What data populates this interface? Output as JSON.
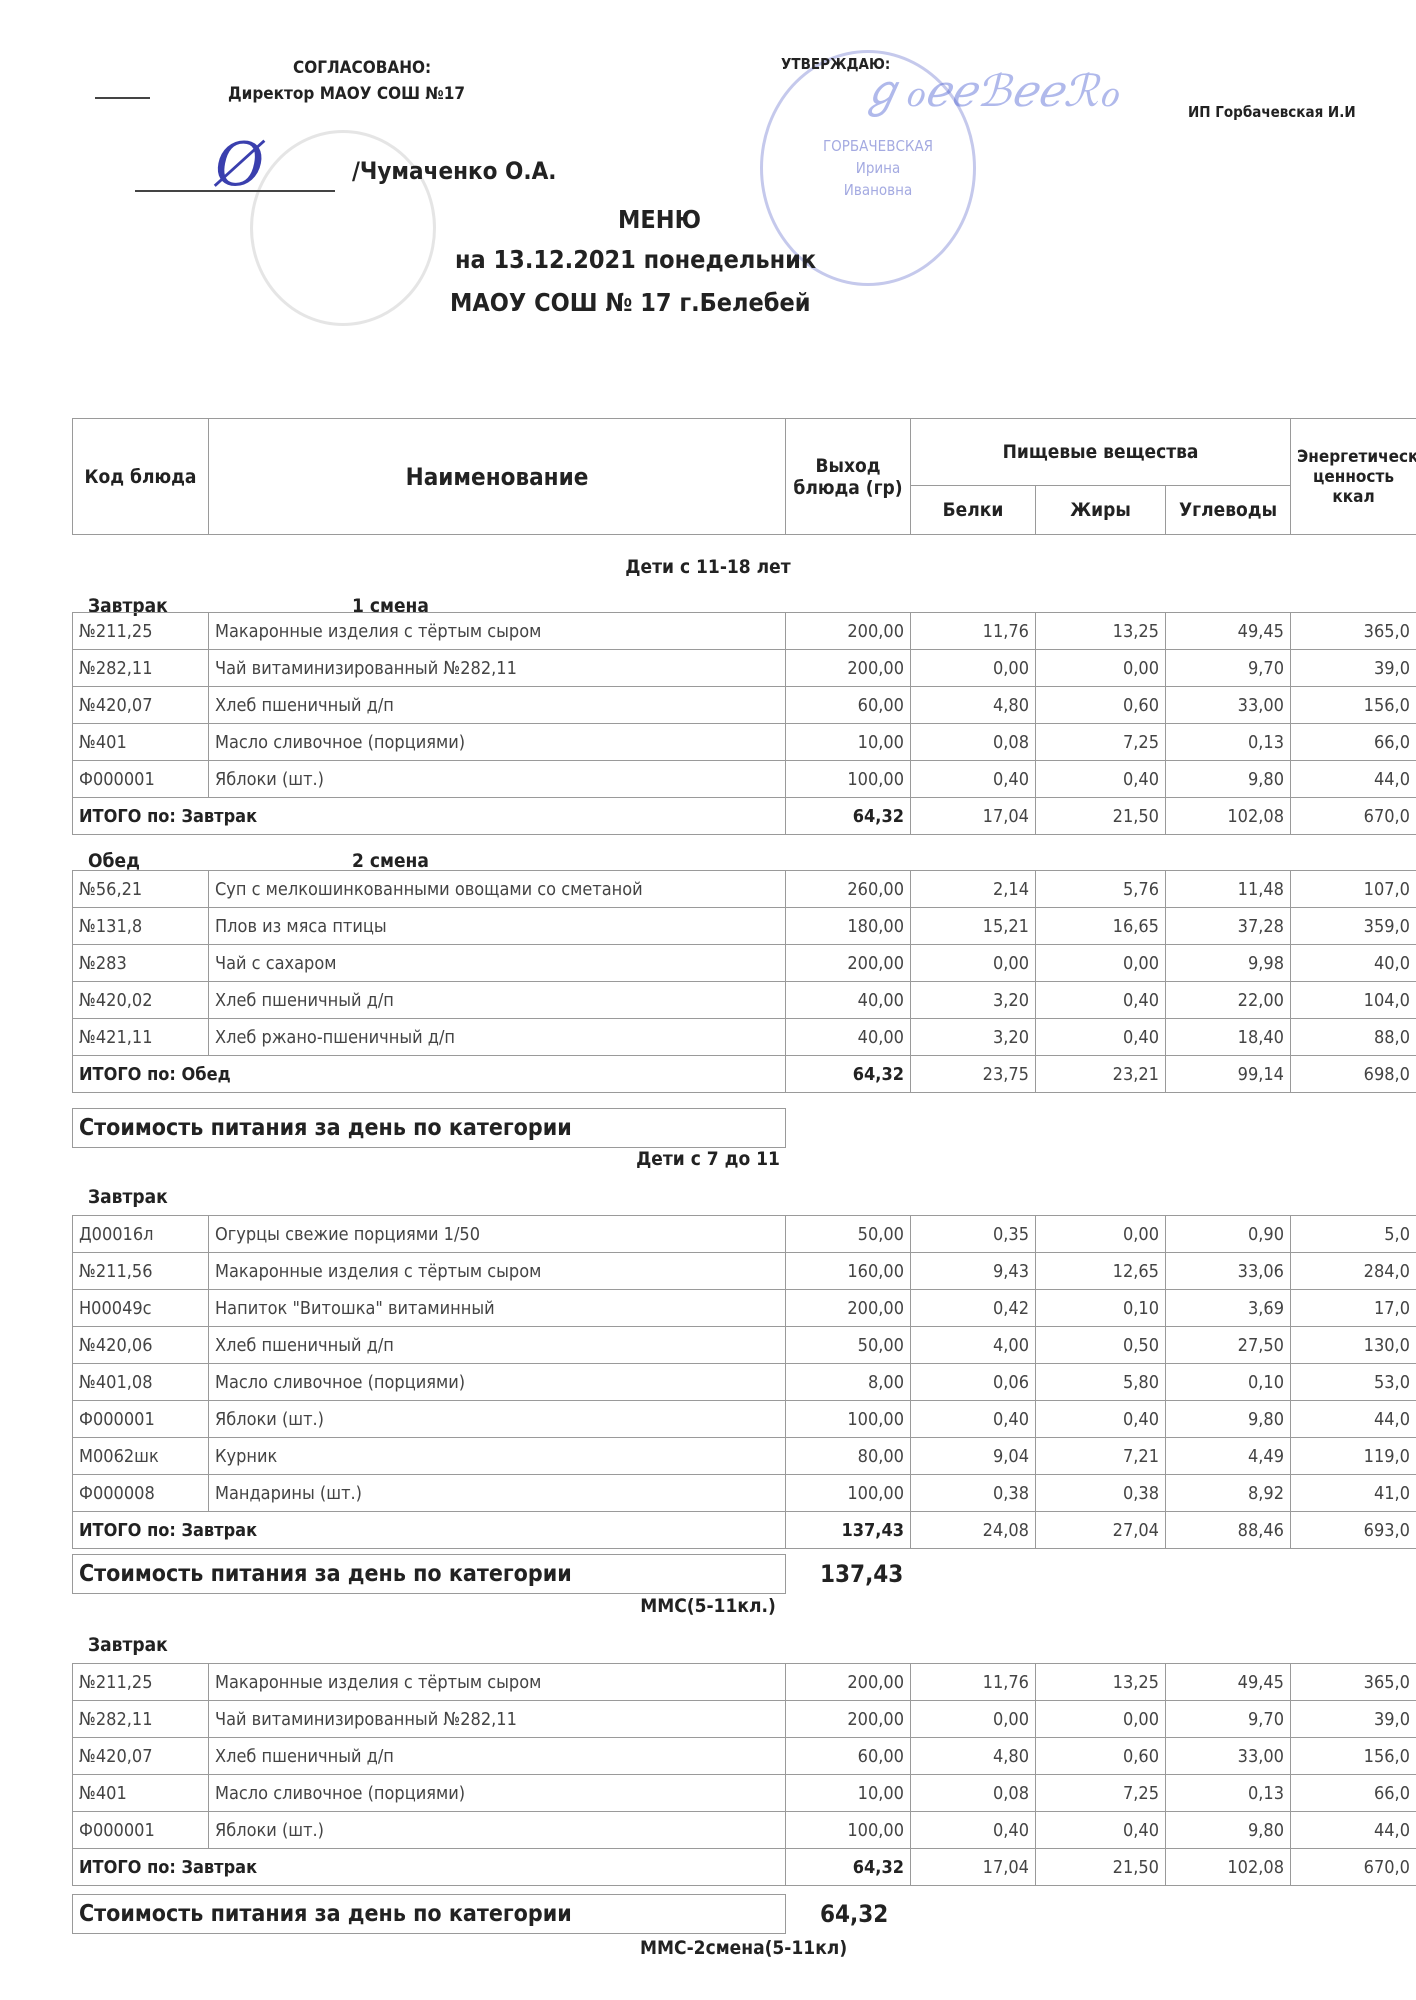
{
  "header": {
    "agreed": "СОГЛАСОВАНО:",
    "director": "Директор МАОУ СОШ №17",
    "director_name": "/Чумаченко О.А.",
    "approve": "УТВЕРЖДАЮ:",
    "approver": "ИП Горбачевская И.И",
    "stamp_text": [
      "ГОРБАЧЕВСКАЯ",
      "Ирина",
      "Ивановна"
    ],
    "title": "МЕНЮ",
    "date": "на 13.12.2021  понедельник",
    "school": "МАОУ СОШ № 17 г.Белебей"
  },
  "columns": {
    "code": "Код блюда",
    "name": "Наименование",
    "yield": "Выход блюда (гр)",
    "nutrients": "Пищевые вещества",
    "protein": "Белки",
    "fat": "Жиры",
    "carbs": "Углеводы",
    "energy": "Энергетическая ценность ккал"
  },
  "sections": [
    {
      "title": "Дети с 11-18 лет",
      "meals": [
        {
          "name": "Завтрак",
          "shift": "1  смена",
          "rows": [
            [
              "№211,25",
              "Макаронные изделия с тёртым сыром",
              "200,00",
              "11,76",
              "13,25",
              "49,45",
              "365,0"
            ],
            [
              "№282,11",
              "Чай витаминизированный №282,11",
              "200,00",
              "0,00",
              "0,00",
              "9,70",
              "39,0"
            ],
            [
              "№420,07",
              "Хлеб пшеничный д/п",
              "60,00",
              "4,80",
              "0,60",
              "33,00",
              "156,0"
            ],
            [
              "№401",
              "Масло сливочное (порциями)",
              "10,00",
              "0,08",
              "7,25",
              "0,13",
              "66,0"
            ],
            [
              "Ф000001",
              "Яблоки (шт.)",
              "100,00",
              "0,40",
              "0,40",
              "9,80",
              "44,0"
            ]
          ],
          "total": [
            "ИТОГО по: Завтрак",
            "64,32",
            "17,04",
            "21,50",
            "102,08",
            "670,0"
          ]
        },
        {
          "name": "Обед",
          "shift": "2  смена",
          "rows": [
            [
              "№56,21",
              "Суп с мелкошинкованными овощами со сметаной",
              "260,00",
              "2,14",
              "5,76",
              "11,48",
              "107,0"
            ],
            [
              "№131,8",
              "Плов из мяса птицы",
              "180,00",
              "15,21",
              "16,65",
              "37,28",
              "359,0"
            ],
            [
              "№283",
              "Чай с сахаром",
              "200,00",
              "0,00",
              "0,00",
              "9,98",
              "40,0"
            ],
            [
              "№420,02",
              "Хлеб пшеничный д/п",
              "40,00",
              "3,20",
              "0,40",
              "22,00",
              "104,0"
            ],
            [
              "№421,11",
              "Хлеб ржано-пшеничный д/п",
              "40,00",
              "3,20",
              "0,40",
              "18,40",
              "88,0"
            ]
          ],
          "total": [
            "ИТОГО по: Обед",
            "64,32",
            "23,75",
            "23,21",
            "99,14",
            "698,0"
          ]
        }
      ],
      "cost_label": "Стоимость питания за день по категории",
      "cost": ""
    },
    {
      "title": "Дети с 7 до 11",
      "meals": [
        {
          "name": "Завтрак",
          "shift": "",
          "rows": [
            [
              "Д00016л",
              "Огурцы свежие порциями 1/50",
              "50,00",
              "0,35",
              "0,00",
              "0,90",
              "5,0"
            ],
            [
              "№211,56",
              "Макаронные изделия с тёртым сыром",
              "160,00",
              "9,43",
              "12,65",
              "33,06",
              "284,0"
            ],
            [
              "Н00049с",
              "Напиток \"Витошка\" витаминный",
              "200,00",
              "0,42",
              "0,10",
              "3,69",
              "17,0"
            ],
            [
              "№420,06",
              "Хлеб пшеничный д/п",
              "50,00",
              "4,00",
              "0,50",
              "27,50",
              "130,0"
            ],
            [
              "№401,08",
              "Масло сливочное (порциями)",
              "8,00",
              "0,06",
              "5,80",
              "0,10",
              "53,0"
            ],
            [
              "Ф000001",
              "Яблоки (шт.)",
              "100,00",
              "0,40",
              "0,40",
              "9,80",
              "44,0"
            ],
            [
              "М0062шк",
              "Курник",
              "80,00",
              "9,04",
              "7,21",
              "4,49",
              "119,0"
            ],
            [
              "Ф000008",
              "Мандарины (шт.)",
              "100,00",
              "0,38",
              "0,38",
              "8,92",
              "41,0"
            ]
          ],
          "total": [
            "ИТОГО по: Завтрак",
            "137,43",
            "24,08",
            "27,04",
            "88,46",
            "693,0"
          ]
        }
      ],
      "cost_label": "Стоимость питания за день по категории",
      "cost": "137,43"
    },
    {
      "title": "ММС(5-11кл.)",
      "meals": [
        {
          "name": "Завтрак",
          "shift": "",
          "rows": [
            [
              "№211,25",
              "Макаронные изделия с тёртым сыром",
              "200,00",
              "11,76",
              "13,25",
              "49,45",
              "365,0"
            ],
            [
              "№282,11",
              "Чай витаминизированный №282,11",
              "200,00",
              "0,00",
              "0,00",
              "9,70",
              "39,0"
            ],
            [
              "№420,07",
              "Хлеб пшеничный д/п",
              "60,00",
              "4,80",
              "0,60",
              "33,00",
              "156,0"
            ],
            [
              "№401",
              "Масло сливочное (порциями)",
              "10,00",
              "0,08",
              "7,25",
              "0,13",
              "66,0"
            ],
            [
              "Ф000001",
              "Яблоки (шт.)",
              "100,00",
              "0,40",
              "0,40",
              "9,80",
              "44,0"
            ]
          ],
          "total": [
            "ИТОГО по: Завтрак",
            "64,32",
            "17,04",
            "21,50",
            "102,08",
            "670,0"
          ]
        }
      ],
      "cost_label": "Стоимость питания за день по категории",
      "cost": "64,32"
    }
  ],
  "footer_section": "ММС-2смена(5-11кл)"
}
